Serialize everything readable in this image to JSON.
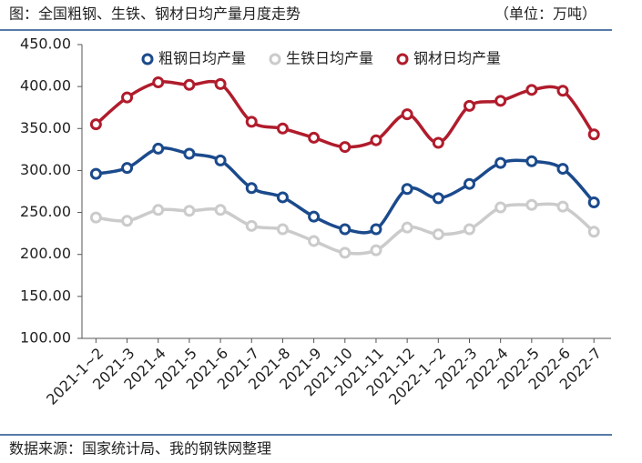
{
  "chart_data": {
    "type": "line",
    "title": "图：全国粗钢、生铁、钢材日均产量月度走势",
    "unit": "（单位：万吨）",
    "source": "数据来源：国家统计局、我的钢铁网整理",
    "categories": [
      "2021-1~2",
      "2021-3",
      "2021-4",
      "2021-5",
      "2021-6",
      "2021-7",
      "2021-8",
      "2021-9",
      "2021-10",
      "2021-11",
      "2021-12",
      "2022-1~2",
      "2022-3",
      "2022-4",
      "2022-5",
      "2022-6",
      "2022-7"
    ],
    "series": [
      {
        "name": "粗钢日均产量",
        "color": "#1b4a8c",
        "values": [
          296,
          303,
          326,
          320,
          312,
          279,
          268,
          245,
          230,
          230,
          278,
          267,
          284,
          309,
          311,
          302,
          262
        ]
      },
      {
        "name": "生铁日均产量",
        "color": "#cbcbcb",
        "values": [
          244,
          240,
          253,
          252,
          253,
          234,
          230,
          216,
          202,
          205,
          232,
          224,
          230,
          256,
          259,
          257,
          227
        ]
      },
      {
        "name": "钢材日均产量",
        "color": "#b01c2c",
        "values": [
          355,
          387,
          405,
          402,
          403,
          358,
          350,
          339,
          328,
          336,
          367,
          333,
          377,
          383,
          396,
          395,
          343
        ]
      }
    ],
    "ylim": [
      100,
      450
    ],
    "yticks": [
      {
        "value": 100,
        "label": "100.00"
      },
      {
        "value": 150,
        "label": "150.00"
      },
      {
        "value": 200,
        "label": "200.00"
      },
      {
        "value": 250,
        "label": "250.00"
      },
      {
        "value": 300,
        "label": "300.00"
      },
      {
        "value": 350,
        "label": "350.00"
      },
      {
        "value": 400,
        "label": "400.00"
      },
      {
        "value": 450,
        "label": "450.00"
      }
    ],
    "legend": "top",
    "grid": false
  }
}
